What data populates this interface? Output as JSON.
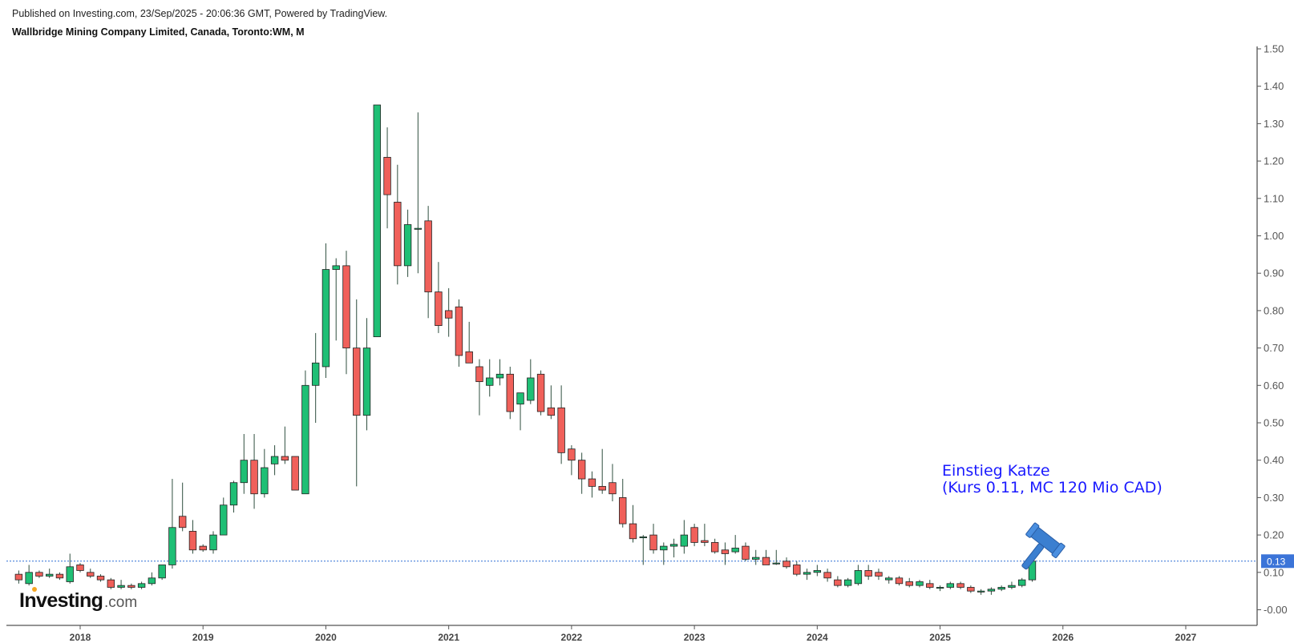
{
  "header": {
    "published": "Published on Investing.com, 23/Sep/2025 - 20:06:36 GMT, Powered by TradingView.",
    "symbol": "Wallbridge Mining Company Limited, Canada, Toronto:WM, M"
  },
  "branding": {
    "logo_main": "Investing",
    "logo_suffix": ".com"
  },
  "annotation": {
    "line1": "Einstieg Katze",
    "line2": "(Kurs 0.11, MC 120 Mio CAD)",
    "icon": "gavel-icon",
    "color": "#1a1aff"
  },
  "current_price": {
    "label": "0.13",
    "value": 0.13
  },
  "colors": {
    "up": "#1fbf75",
    "down": "#f0605a",
    "wick": "#2f4f3f",
    "price_line": "#2f6fd6",
    "price_tag": "#3b74d8",
    "gavel": "#3b7fd0"
  },
  "chart_data": {
    "type": "candlestick",
    "interval": "monthly",
    "y_axis": {
      "side": "right",
      "ylim": [
        -0.03,
        1.5
      ],
      "ticks": [
        "-0.00",
        "0.10",
        "0.20",
        "0.30",
        "0.40",
        "0.50",
        "0.60",
        "0.70",
        "0.80",
        "0.90",
        "1.00",
        "1.10",
        "1.20",
        "1.30",
        "1.40",
        "1.50"
      ]
    },
    "x_axis": {
      "ticks": [
        "2018",
        "2019",
        "2020",
        "2021",
        "2022",
        "2023",
        "2024",
        "2025",
        "2026",
        "2027"
      ],
      "xlim": [
        "2017-07",
        "2027-09"
      ]
    },
    "candles": [
      {
        "t": "2017-07",
        "o": 0.095,
        "h": 0.105,
        "l": 0.07,
        "c": 0.08
      },
      {
        "t": "2017-08",
        "o": 0.07,
        "h": 0.12,
        "l": 0.065,
        "c": 0.1
      },
      {
        "t": "2017-09",
        "o": 0.1,
        "h": 0.105,
        "l": 0.085,
        "c": 0.09
      },
      {
        "t": "2017-10",
        "o": 0.09,
        "h": 0.11,
        "l": 0.085,
        "c": 0.095
      },
      {
        "t": "2017-11",
        "o": 0.095,
        "h": 0.1,
        "l": 0.08,
        "c": 0.085
      },
      {
        "t": "2017-12",
        "o": 0.075,
        "h": 0.15,
        "l": 0.07,
        "c": 0.115
      },
      {
        "t": "2018-01",
        "o": 0.12,
        "h": 0.125,
        "l": 0.1,
        "c": 0.105
      },
      {
        "t": "2018-02",
        "o": 0.1,
        "h": 0.11,
        "l": 0.085,
        "c": 0.09
      },
      {
        "t": "2018-03",
        "o": 0.09,
        "h": 0.095,
        "l": 0.075,
        "c": 0.08
      },
      {
        "t": "2018-04",
        "o": 0.08,
        "h": 0.085,
        "l": 0.055,
        "c": 0.06
      },
      {
        "t": "2018-05",
        "o": 0.06,
        "h": 0.08,
        "l": 0.055,
        "c": 0.065
      },
      {
        "t": "2018-06",
        "o": 0.065,
        "h": 0.07,
        "l": 0.055,
        "c": 0.06
      },
      {
        "t": "2018-07",
        "o": 0.06,
        "h": 0.075,
        "l": 0.055,
        "c": 0.07
      },
      {
        "t": "2018-08",
        "o": 0.07,
        "h": 0.1,
        "l": 0.065,
        "c": 0.085
      },
      {
        "t": "2018-09",
        "o": 0.085,
        "h": 0.12,
        "l": 0.08,
        "c": 0.12
      },
      {
        "t": "2018-10",
        "o": 0.12,
        "h": 0.35,
        "l": 0.11,
        "c": 0.22
      },
      {
        "t": "2018-11",
        "o": 0.25,
        "h": 0.34,
        "l": 0.21,
        "c": 0.22
      },
      {
        "t": "2018-12",
        "o": 0.21,
        "h": 0.24,
        "l": 0.15,
        "c": 0.16
      },
      {
        "t": "2019-01",
        "o": 0.17,
        "h": 0.175,
        "l": 0.155,
        "c": 0.16
      },
      {
        "t": "2019-02",
        "o": 0.16,
        "h": 0.21,
        "l": 0.15,
        "c": 0.2
      },
      {
        "t": "2019-03",
        "o": 0.2,
        "h": 0.3,
        "l": 0.2,
        "c": 0.28
      },
      {
        "t": "2019-04",
        "o": 0.28,
        "h": 0.345,
        "l": 0.26,
        "c": 0.34
      },
      {
        "t": "2019-05",
        "o": 0.34,
        "h": 0.47,
        "l": 0.31,
        "c": 0.4
      },
      {
        "t": "2019-06",
        "o": 0.4,
        "h": 0.47,
        "l": 0.27,
        "c": 0.31
      },
      {
        "t": "2019-07",
        "o": 0.31,
        "h": 0.43,
        "l": 0.3,
        "c": 0.38
      },
      {
        "t": "2019-08",
        "o": 0.39,
        "h": 0.44,
        "l": 0.36,
        "c": 0.41
      },
      {
        "t": "2019-09",
        "o": 0.41,
        "h": 0.49,
        "l": 0.39,
        "c": 0.4
      },
      {
        "t": "2019-10",
        "o": 0.41,
        "h": 0.41,
        "l": 0.32,
        "c": 0.32
      },
      {
        "t": "2019-11",
        "o": 0.31,
        "h": 0.64,
        "l": 0.31,
        "c": 0.6
      },
      {
        "t": "2019-12",
        "o": 0.6,
        "h": 0.74,
        "l": 0.5,
        "c": 0.66
      },
      {
        "t": "2020-01",
        "o": 0.65,
        "h": 0.98,
        "l": 0.62,
        "c": 0.91
      },
      {
        "t": "2020-02",
        "o": 0.91,
        "h": 0.94,
        "l": 0.72,
        "c": 0.92
      },
      {
        "t": "2020-03",
        "o": 0.92,
        "h": 0.96,
        "l": 0.63,
        "c": 0.7
      },
      {
        "t": "2020-04",
        "o": 0.7,
        "h": 0.83,
        "l": 0.33,
        "c": 0.52
      },
      {
        "t": "2020-05",
        "o": 0.52,
        "h": 0.78,
        "l": 0.48,
        "c": 0.7
      },
      {
        "t": "2020-06",
        "o": 0.73,
        "h": 1.35,
        "l": 0.73,
        "c": 1.35
      },
      {
        "t": "2020-07",
        "o": 1.21,
        "h": 1.29,
        "l": 1.02,
        "c": 1.11
      },
      {
        "t": "2020-08",
        "o": 1.09,
        "h": 1.19,
        "l": 0.87,
        "c": 0.92
      },
      {
        "t": "2020-09",
        "o": 0.92,
        "h": 1.07,
        "l": 0.89,
        "c": 1.03
      },
      {
        "t": "2020-10",
        "o": 1.02,
        "h": 1.33,
        "l": 0.9,
        "c": 1.02
      },
      {
        "t": "2020-11",
        "o": 1.04,
        "h": 1.08,
        "l": 0.78,
        "c": 0.85
      },
      {
        "t": "2020-12",
        "o": 0.85,
        "h": 0.93,
        "l": 0.74,
        "c": 0.76
      },
      {
        "t": "2021-01",
        "o": 0.8,
        "h": 0.86,
        "l": 0.73,
        "c": 0.78
      },
      {
        "t": "2021-02",
        "o": 0.81,
        "h": 0.83,
        "l": 0.65,
        "c": 0.68
      },
      {
        "t": "2021-03",
        "o": 0.69,
        "h": 0.77,
        "l": 0.66,
        "c": 0.66
      },
      {
        "t": "2021-04",
        "o": 0.65,
        "h": 0.67,
        "l": 0.52,
        "c": 0.61
      },
      {
        "t": "2021-05",
        "o": 0.6,
        "h": 0.67,
        "l": 0.57,
        "c": 0.62
      },
      {
        "t": "2021-06",
        "o": 0.62,
        "h": 0.67,
        "l": 0.6,
        "c": 0.63
      },
      {
        "t": "2021-07",
        "o": 0.63,
        "h": 0.65,
        "l": 0.51,
        "c": 0.53
      },
      {
        "t": "2021-08",
        "o": 0.55,
        "h": 0.58,
        "l": 0.48,
        "c": 0.58
      },
      {
        "t": "2021-09",
        "o": 0.56,
        "h": 0.67,
        "l": 0.55,
        "c": 0.62
      },
      {
        "t": "2021-10",
        "o": 0.63,
        "h": 0.64,
        "l": 0.52,
        "c": 0.53
      },
      {
        "t": "2021-11",
        "o": 0.54,
        "h": 0.6,
        "l": 0.51,
        "c": 0.52
      },
      {
        "t": "2021-12",
        "o": 0.54,
        "h": 0.6,
        "l": 0.39,
        "c": 0.42
      },
      {
        "t": "2022-01",
        "o": 0.43,
        "h": 0.44,
        "l": 0.36,
        "c": 0.4
      },
      {
        "t": "2022-02",
        "o": 0.4,
        "h": 0.42,
        "l": 0.31,
        "c": 0.35
      },
      {
        "t": "2022-03",
        "o": 0.35,
        "h": 0.37,
        "l": 0.3,
        "c": 0.33
      },
      {
        "t": "2022-04",
        "o": 0.33,
        "h": 0.43,
        "l": 0.31,
        "c": 0.32
      },
      {
        "t": "2022-05",
        "o": 0.34,
        "h": 0.39,
        "l": 0.29,
        "c": 0.31
      },
      {
        "t": "2022-06",
        "o": 0.3,
        "h": 0.35,
        "l": 0.22,
        "c": 0.23
      },
      {
        "t": "2022-07",
        "o": 0.23,
        "h": 0.28,
        "l": 0.18,
        "c": 0.19
      },
      {
        "t": "2022-08",
        "o": 0.195,
        "h": 0.2,
        "l": 0.12,
        "c": 0.195
      },
      {
        "t": "2022-09",
        "o": 0.2,
        "h": 0.23,
        "l": 0.15,
        "c": 0.16
      },
      {
        "t": "2022-10",
        "o": 0.16,
        "h": 0.18,
        "l": 0.12,
        "c": 0.17
      },
      {
        "t": "2022-11",
        "o": 0.17,
        "h": 0.19,
        "l": 0.14,
        "c": 0.175
      },
      {
        "t": "2022-12",
        "o": 0.17,
        "h": 0.24,
        "l": 0.15,
        "c": 0.2
      },
      {
        "t": "2023-01",
        "o": 0.22,
        "h": 0.23,
        "l": 0.17,
        "c": 0.18
      },
      {
        "t": "2023-02",
        "o": 0.185,
        "h": 0.23,
        "l": 0.17,
        "c": 0.18
      },
      {
        "t": "2023-03",
        "o": 0.18,
        "h": 0.19,
        "l": 0.15,
        "c": 0.155
      },
      {
        "t": "2023-04",
        "o": 0.16,
        "h": 0.18,
        "l": 0.12,
        "c": 0.15
      },
      {
        "t": "2023-05",
        "o": 0.155,
        "h": 0.2,
        "l": 0.15,
        "c": 0.165
      },
      {
        "t": "2023-06",
        "o": 0.17,
        "h": 0.18,
        "l": 0.13,
        "c": 0.135
      },
      {
        "t": "2023-07",
        "o": 0.135,
        "h": 0.16,
        "l": 0.12,
        "c": 0.14
      },
      {
        "t": "2023-08",
        "o": 0.14,
        "h": 0.16,
        "l": 0.12,
        "c": 0.12
      },
      {
        "t": "2023-09",
        "o": 0.125,
        "h": 0.16,
        "l": 0.12,
        "c": 0.125
      },
      {
        "t": "2023-10",
        "o": 0.13,
        "h": 0.14,
        "l": 0.11,
        "c": 0.115
      },
      {
        "t": "2023-11",
        "o": 0.12,
        "h": 0.13,
        "l": 0.09,
        "c": 0.095
      },
      {
        "t": "2023-12",
        "o": 0.095,
        "h": 0.11,
        "l": 0.08,
        "c": 0.1
      },
      {
        "t": "2024-01",
        "o": 0.1,
        "h": 0.12,
        "l": 0.09,
        "c": 0.105
      },
      {
        "t": "2024-02",
        "o": 0.1,
        "h": 0.11,
        "l": 0.075,
        "c": 0.085
      },
      {
        "t": "2024-03",
        "o": 0.08,
        "h": 0.09,
        "l": 0.06,
        "c": 0.065
      },
      {
        "t": "2024-04",
        "o": 0.065,
        "h": 0.085,
        "l": 0.06,
        "c": 0.08
      },
      {
        "t": "2024-05",
        "o": 0.07,
        "h": 0.12,
        "l": 0.065,
        "c": 0.105
      },
      {
        "t": "2024-06",
        "o": 0.105,
        "h": 0.12,
        "l": 0.08,
        "c": 0.09
      },
      {
        "t": "2024-07",
        "o": 0.1,
        "h": 0.11,
        "l": 0.08,
        "c": 0.09
      },
      {
        "t": "2024-08",
        "o": 0.08,
        "h": 0.09,
        "l": 0.07,
        "c": 0.085
      },
      {
        "t": "2024-09",
        "o": 0.085,
        "h": 0.09,
        "l": 0.065,
        "c": 0.07
      },
      {
        "t": "2024-10",
        "o": 0.075,
        "h": 0.085,
        "l": 0.06,
        "c": 0.065
      },
      {
        "t": "2024-11",
        "o": 0.065,
        "h": 0.08,
        "l": 0.06,
        "c": 0.075
      },
      {
        "t": "2024-12",
        "o": 0.07,
        "h": 0.08,
        "l": 0.055,
        "c": 0.06
      },
      {
        "t": "2025-01",
        "o": 0.06,
        "h": 0.065,
        "l": 0.05,
        "c": 0.06
      },
      {
        "t": "2025-02",
        "o": 0.06,
        "h": 0.075,
        "l": 0.055,
        "c": 0.07
      },
      {
        "t": "2025-03",
        "o": 0.07,
        "h": 0.075,
        "l": 0.055,
        "c": 0.06
      },
      {
        "t": "2025-04",
        "o": 0.06,
        "h": 0.065,
        "l": 0.045,
        "c": 0.05
      },
      {
        "t": "2025-05",
        "o": 0.05,
        "h": 0.055,
        "l": 0.04,
        "c": 0.05
      },
      {
        "t": "2025-06",
        "o": 0.05,
        "h": 0.06,
        "l": 0.04,
        "c": 0.055
      },
      {
        "t": "2025-07",
        "o": 0.055,
        "h": 0.065,
        "l": 0.05,
        "c": 0.06
      },
      {
        "t": "2025-08",
        "o": 0.06,
        "h": 0.075,
        "l": 0.055,
        "c": 0.065
      },
      {
        "t": "2025-09",
        "o": 0.065,
        "h": 0.085,
        "l": 0.06,
        "c": 0.08
      },
      {
        "t": "2025-10",
        "o": 0.08,
        "h": 0.13,
        "l": 0.075,
        "c": 0.13
      }
    ]
  }
}
